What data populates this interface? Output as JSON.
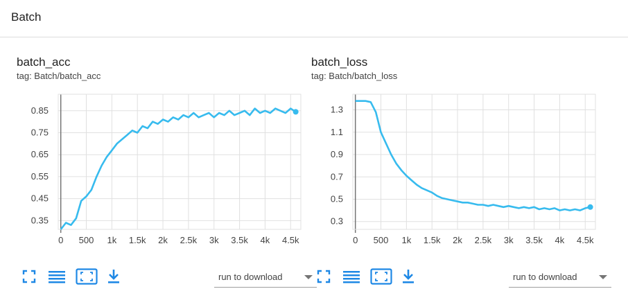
{
  "group": {
    "title": "Batch"
  },
  "cards": [
    {
      "title": "batch_acc",
      "tag": "tag: Batch/batch_acc",
      "run_select_label": "run to download"
    },
    {
      "title": "batch_loss",
      "tag": "tag: Batch/batch_loss",
      "run_select_label": "run to download"
    }
  ],
  "colors": {
    "series": "#37bbee",
    "grid": "#e0e0e0",
    "axis": "#757575",
    "icon": "#1e88e5"
  },
  "icons": [
    "fullscreen-icon",
    "toggle-log-scale-icon",
    "fit-domain-icon",
    "download-icon",
    "dropdown-caret-icon"
  ],
  "chart_data": [
    {
      "type": "line",
      "title": "batch_acc",
      "xlabel": "",
      "ylabel": "",
      "xlim": [
        -50,
        4700
      ],
      "ylim": [
        0.31,
        0.925
      ],
      "x_ticks": [
        0,
        500,
        1000,
        1500,
        2000,
        2500,
        3000,
        3500,
        4000,
        4500
      ],
      "x_tick_labels": [
        "0",
        "500",
        "1k",
        "1.5k",
        "2k",
        "2.5k",
        "3k",
        "3.5k",
        "4k",
        "4.5k"
      ],
      "y_ticks": [
        0.35,
        0.45,
        0.55,
        0.65,
        0.75,
        0.85
      ],
      "y_tick_labels": [
        "0.35",
        "0.45",
        "0.55",
        "0.65",
        "0.75",
        "0.85"
      ],
      "grid": true,
      "series": [
        {
          "x": [
            0,
            100,
            200,
            300,
            400,
            500,
            600,
            700,
            800,
            900,
            1000,
            1100,
            1200,
            1300,
            1400,
            1500,
            1600,
            1700,
            1800,
            1900,
            2000,
            2100,
            2200,
            2300,
            2400,
            2500,
            2600,
            2700,
            2800,
            2900,
            3000,
            3100,
            3200,
            3300,
            3400,
            3500,
            3600,
            3700,
            3800,
            3900,
            4000,
            4100,
            4200,
            4300,
            4400,
            4500,
            4600
          ],
          "values": [
            0.31,
            0.34,
            0.33,
            0.36,
            0.44,
            0.46,
            0.49,
            0.55,
            0.6,
            0.64,
            0.67,
            0.7,
            0.72,
            0.74,
            0.76,
            0.75,
            0.78,
            0.77,
            0.8,
            0.79,
            0.81,
            0.8,
            0.82,
            0.81,
            0.83,
            0.82,
            0.84,
            0.82,
            0.83,
            0.84,
            0.82,
            0.84,
            0.83,
            0.85,
            0.83,
            0.84,
            0.85,
            0.83,
            0.86,
            0.84,
            0.85,
            0.84,
            0.86,
            0.85,
            0.84,
            0.86,
            0.845
          ]
        }
      ]
    },
    {
      "type": "line",
      "title": "batch_loss",
      "xlabel": "",
      "ylabel": "",
      "xlim": [
        -50,
        4700
      ],
      "ylim": [
        0.23,
        1.44
      ],
      "x_ticks": [
        0,
        500,
        1000,
        1500,
        2000,
        2500,
        3000,
        3500,
        4000,
        4500
      ],
      "x_tick_labels": [
        "0",
        "500",
        "1k",
        "1.5k",
        "2k",
        "2.5k",
        "3k",
        "3.5k",
        "4k",
        "4.5k"
      ],
      "y_ticks": [
        0.3,
        0.5,
        0.7,
        0.9,
        1.1,
        1.3
      ],
      "y_tick_labels": [
        "0.3",
        "0.5",
        "0.7",
        "0.9",
        "1.1",
        "1.3"
      ],
      "grid": true,
      "series": [
        {
          "x": [
            0,
            100,
            200,
            300,
            400,
            500,
            600,
            700,
            800,
            900,
            1000,
            1100,
            1200,
            1300,
            1400,
            1500,
            1600,
            1700,
            1800,
            1900,
            2000,
            2100,
            2200,
            2300,
            2400,
            2500,
            2600,
            2700,
            2800,
            2900,
            3000,
            3100,
            3200,
            3300,
            3400,
            3500,
            3600,
            3700,
            3800,
            3900,
            4000,
            4100,
            4200,
            4300,
            4400,
            4500,
            4600
          ],
          "values": [
            1.38,
            1.38,
            1.38,
            1.37,
            1.28,
            1.1,
            1.0,
            0.9,
            0.82,
            0.76,
            0.71,
            0.67,
            0.63,
            0.6,
            0.58,
            0.56,
            0.53,
            0.51,
            0.5,
            0.49,
            0.48,
            0.47,
            0.47,
            0.46,
            0.45,
            0.45,
            0.44,
            0.45,
            0.44,
            0.43,
            0.44,
            0.43,
            0.42,
            0.43,
            0.42,
            0.43,
            0.41,
            0.42,
            0.41,
            0.42,
            0.4,
            0.41,
            0.4,
            0.41,
            0.4,
            0.42,
            0.43
          ]
        }
      ]
    }
  ]
}
